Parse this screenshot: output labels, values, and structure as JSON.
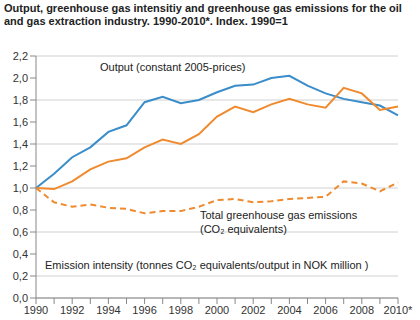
{
  "chart_data": {
    "type": "line",
    "title": "Output, greenhouse gas intensitiy and greenhouse gas emissions for the oil  and gas extraction industry. 1990-2010*. Index. 1990=1",
    "categories": [
      "1990",
      null,
      "1992",
      null,
      "1994",
      null,
      "1996",
      null,
      "1998",
      null,
      "2000",
      null,
      "2002",
      null,
      "2004",
      null,
      "2006",
      null,
      "2008",
      null,
      "2010*"
    ],
    "series": [
      {
        "name": "Output (constant 2005-prices)",
        "color": "#3a8dc9",
        "line_style": "solid",
        "marker": "none",
        "values": [
          1.0,
          1.13,
          1.28,
          1.37,
          1.51,
          1.57,
          1.78,
          1.83,
          1.77,
          1.8,
          1.87,
          1.93,
          1.94,
          2.0,
          2.02,
          1.93,
          1.86,
          1.81,
          1.78,
          1.75,
          1.66
        ]
      },
      {
        "name": "Total greenhouse gas emissions (CO₂ equivalents)",
        "color": "#f08a2e",
        "line_style": "solid",
        "marker": "none",
        "values": [
          1.0,
          0.99,
          1.06,
          1.17,
          1.24,
          1.27,
          1.37,
          1.44,
          1.4,
          1.49,
          1.65,
          1.74,
          1.69,
          1.76,
          1.81,
          1.76,
          1.73,
          1.91,
          1.86,
          1.71,
          1.74
        ]
      },
      {
        "name": "Emission intensity (tonnes CO₂ equivalents/output in NOK million )",
        "color": "#f08a2e",
        "line_style": "dashed",
        "marker": "none",
        "values": [
          1.0,
          0.87,
          0.83,
          0.85,
          0.82,
          0.81,
          0.77,
          0.79,
          0.79,
          0.83,
          0.89,
          0.9,
          0.87,
          0.88,
          0.9,
          0.91,
          0.92,
          1.06,
          1.04,
          0.97,
          1.05
        ]
      }
    ],
    "ylim": [
      0,
      2.2
    ],
    "yticks": [
      {
        "value": 0,
        "label": "0,0"
      },
      {
        "value": 0.2,
        "label": "0,2"
      },
      {
        "value": 0.4,
        "label": "0,4"
      },
      {
        "value": 0.6,
        "label": "0,6"
      },
      {
        "value": 0.8,
        "label": "0,8"
      },
      {
        "value": 1.0,
        "label": "1,0"
      },
      {
        "value": 1.2,
        "label": "1,2"
      },
      {
        "value": 1.4,
        "label": "1,4"
      },
      {
        "value": 1.6,
        "label": "1,6"
      },
      {
        "value": 1.8,
        "label": "1,8"
      },
      {
        "value": 2.0,
        "label": "2,0"
      },
      {
        "value": 2.2,
        "label": "2,2"
      }
    ],
    "grid": true
  }
}
